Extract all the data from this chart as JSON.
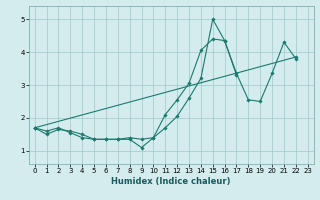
{
  "title": "",
  "xlabel": "Humidex (Indice chaleur)",
  "ylabel": "",
  "bg_color": "#d4ecee",
  "grid_color": "#9ec8cc",
  "line_color": "#1a7a6e",
  "xlim": [
    -0.5,
    23.5
  ],
  "ylim": [
    0.6,
    5.4
  ],
  "xticks": [
    0,
    1,
    2,
    3,
    4,
    5,
    6,
    7,
    8,
    9,
    10,
    11,
    12,
    13,
    14,
    15,
    16,
    17,
    18,
    19,
    20,
    21,
    22,
    23
  ],
  "yticks": [
    1,
    2,
    3,
    4,
    5
  ],
  "x": [
    0,
    1,
    2,
    3,
    4,
    5,
    6,
    7,
    8,
    9,
    10,
    11,
    12,
    13,
    14,
    15,
    16,
    17,
    18,
    19,
    20,
    21,
    22,
    23
  ],
  "line1": [
    1.7,
    1.5,
    1.65,
    1.6,
    1.5,
    1.35,
    1.35,
    1.35,
    1.35,
    1.1,
    1.4,
    1.7,
    2.05,
    2.6,
    3.2,
    5.0,
    4.35,
    3.3,
    null,
    null,
    null,
    null,
    null,
    null
  ],
  "line2": [
    1.7,
    1.6,
    1.7,
    1.55,
    1.4,
    1.35,
    1.35,
    1.35,
    1.4,
    1.35,
    1.4,
    2.1,
    2.55,
    3.05,
    4.05,
    4.4,
    4.35,
    3.35,
    2.55,
    2.5,
    3.35,
    4.3,
    3.8,
    null
  ],
  "line3_endpoints": [
    [
      0,
      1.7
    ],
    [
      22,
      3.85
    ]
  ]
}
